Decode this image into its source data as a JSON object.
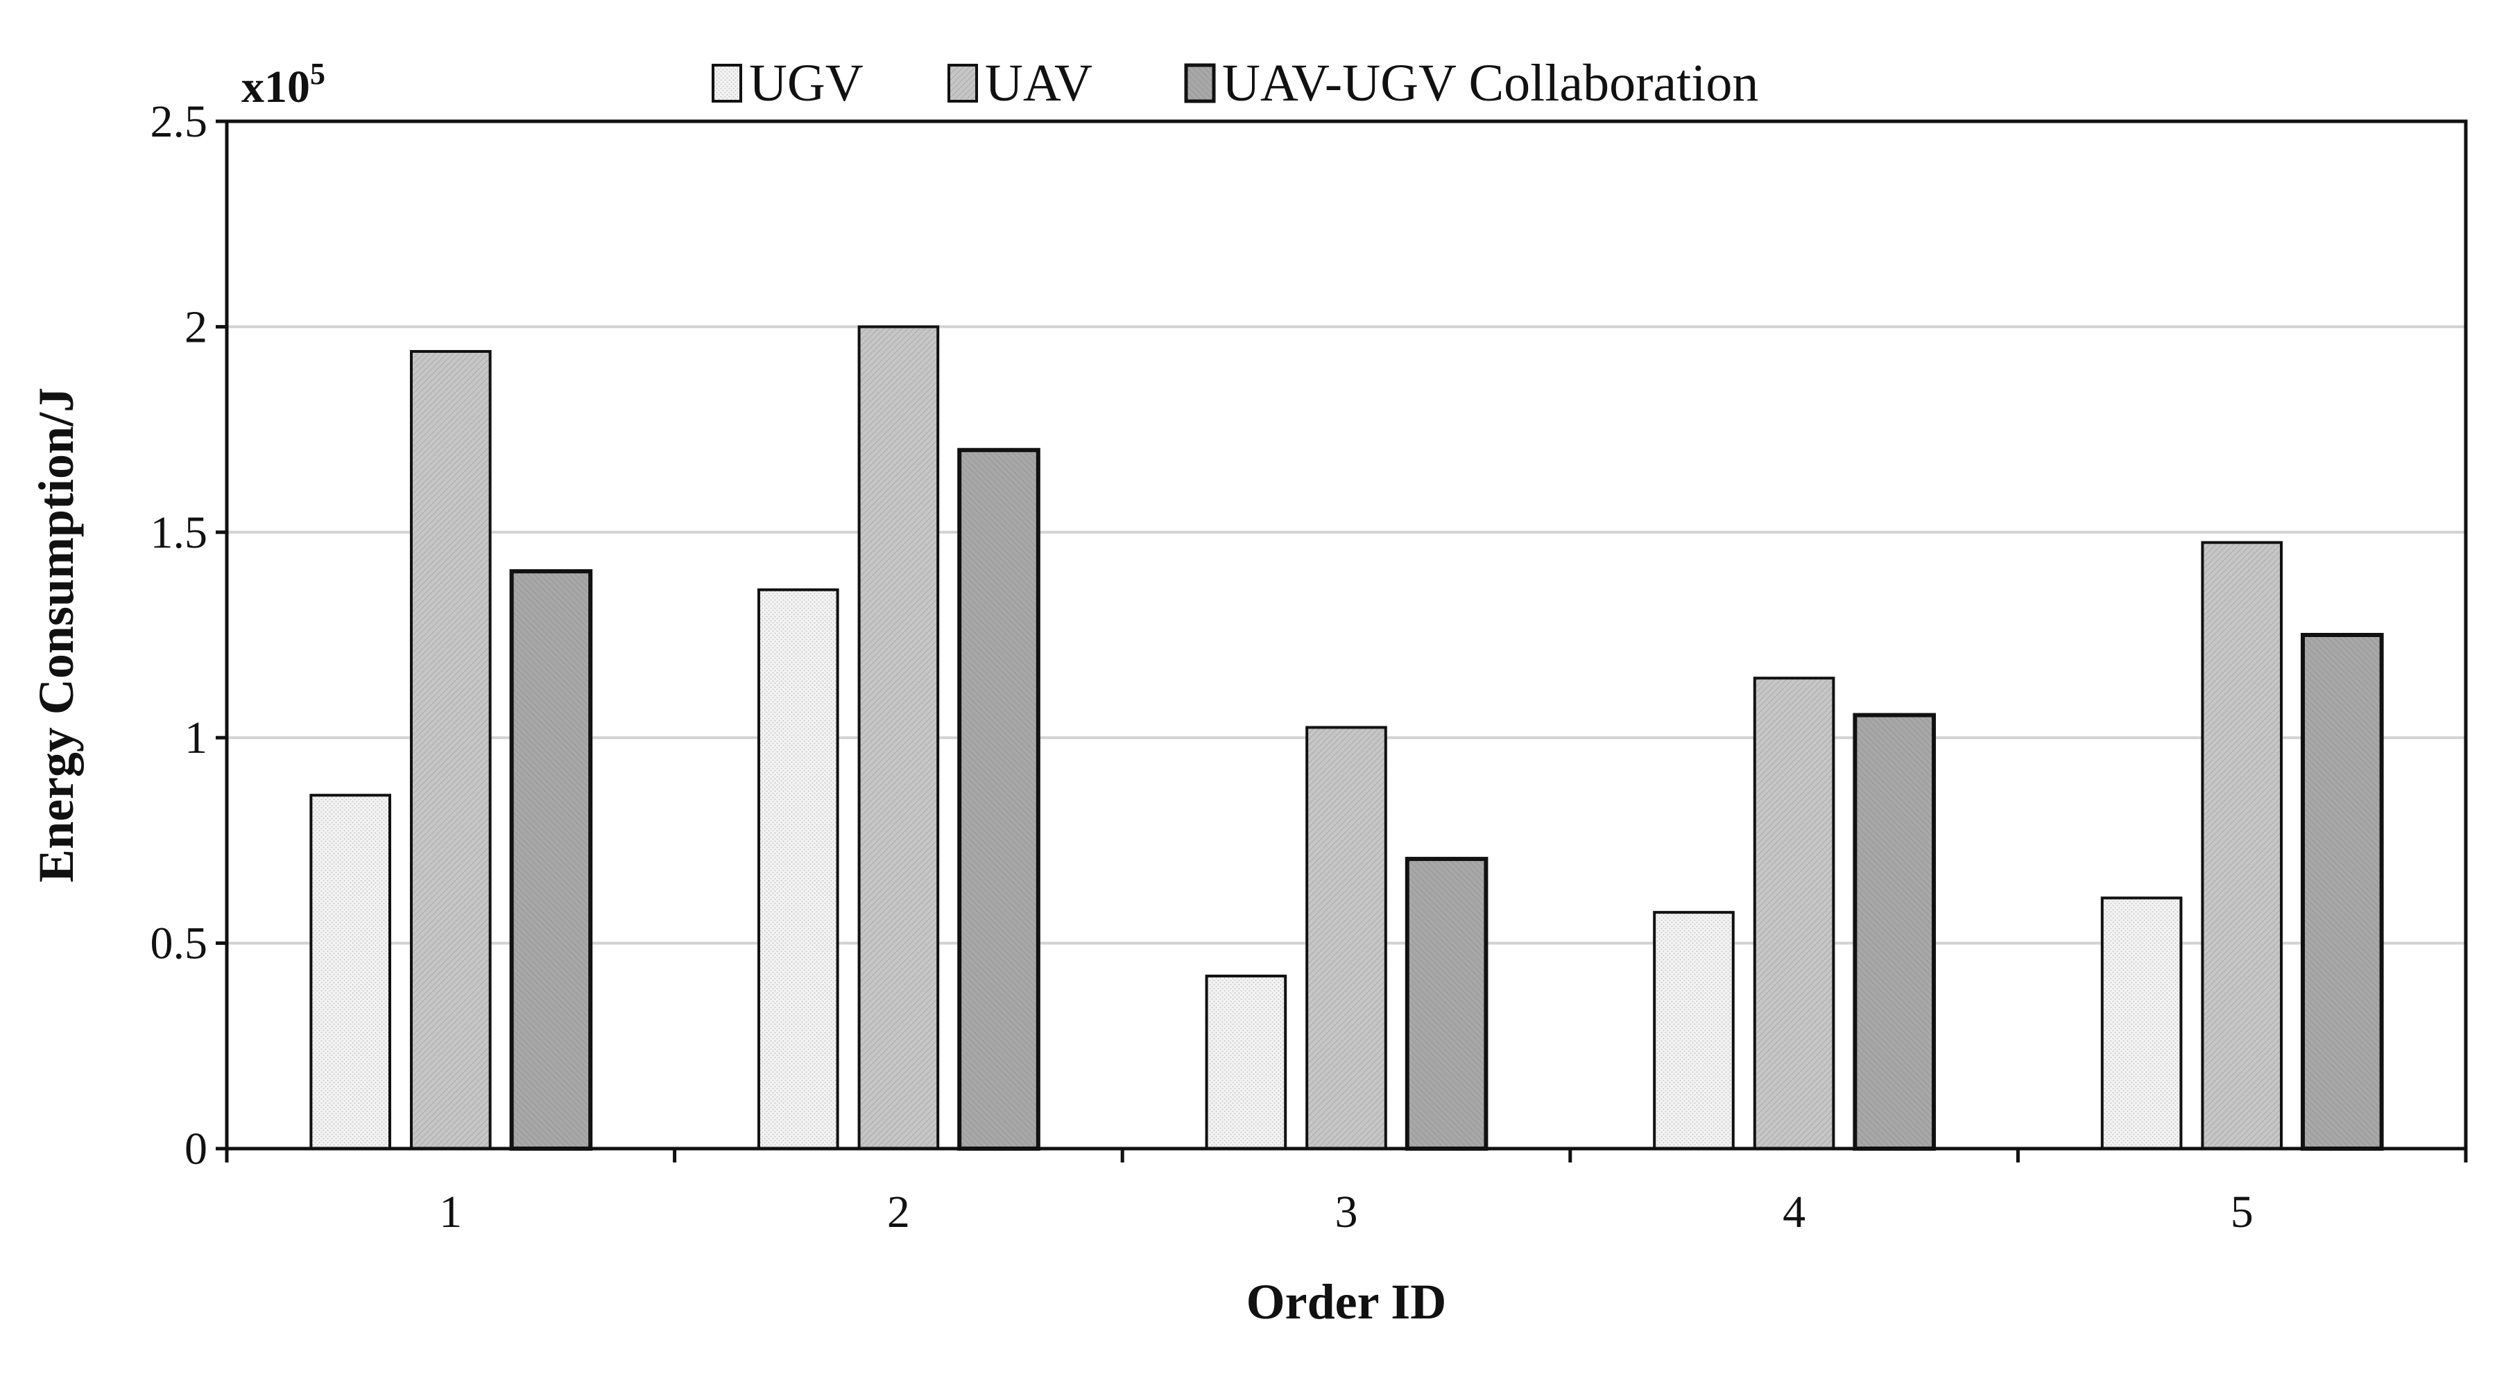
{
  "chart_data": {
    "type": "bar",
    "categories": [
      "1",
      "2",
      "3",
      "4",
      "5"
    ],
    "series": [
      {
        "name": "UGV",
        "values": [
          0.86,
          1.36,
          0.42,
          0.575,
          0.61
        ]
      },
      {
        "name": "UAV",
        "values": [
          1.94,
          2.0,
          1.025,
          1.145,
          1.475
        ]
      },
      {
        "name": "UAV-UGV Collaboration",
        "values": [
          1.405,
          1.7,
          0.705,
          1.055,
          1.25
        ]
      }
    ],
    "title": "",
    "xlabel": "Order ID",
    "ylabel": "Energy Consumption/J",
    "y_multiplier_base": "x10",
    "y_multiplier_exponent": "5",
    "ylim": [
      0,
      2.5
    ],
    "yticks": [
      0,
      0.5,
      1,
      1.5,
      2,
      2.5
    ],
    "ytick_labels": [
      "0",
      "0.5",
      "1",
      "1.5",
      "2",
      "2.5"
    ],
    "grid": "horizontal",
    "legend_position": "top-center",
    "colors": {
      "UGV": "#f0f0f0",
      "UAV": "#c0c0c0",
      "UAV-UGV Collaboration": "#a4a4a4",
      "grid": "#d2d2d2",
      "axis": "#111111"
    }
  }
}
